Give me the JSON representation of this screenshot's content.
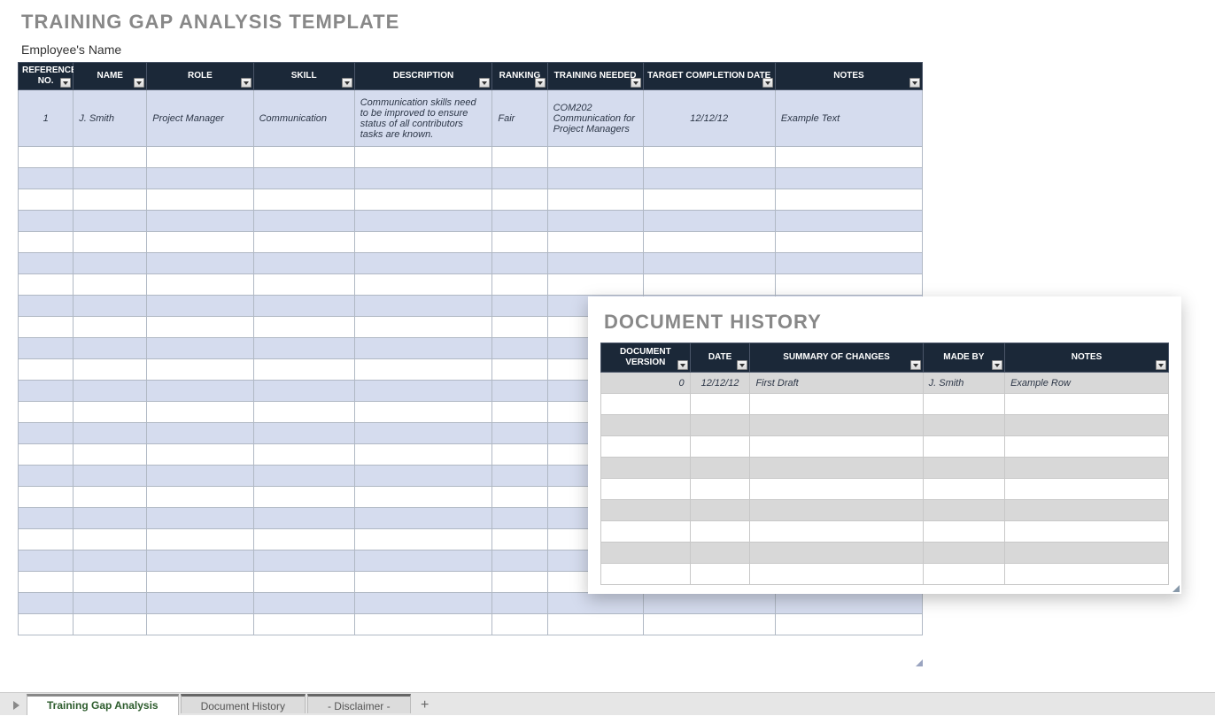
{
  "page": {
    "title": "TRAINING GAP ANALYSIS TEMPLATE",
    "employee_name_label": "Employee's Name"
  },
  "main_table": {
    "headers": {
      "ref": "REFERENCE NO.",
      "name": "NAME",
      "role": "ROLE",
      "skill": "SKILL",
      "desc": "DESCRIPTION",
      "rank": "RANKING",
      "train": "TRAINING NEEDED",
      "date": "TARGET COMPLETION DATE",
      "notes": "NOTES"
    },
    "row1": {
      "ref": "1",
      "name": "J. Smith",
      "role": "Project Manager",
      "skill": "Communication",
      "desc": "Communication skills need to be improved to ensure status of all contributors tasks are known.",
      "rank": "Fair",
      "train": "COM202 Communication for Project Managers",
      "date": "12/12/12",
      "notes": "Example Text"
    },
    "empty_row_count": 23,
    "colors": {
      "header_bg": "#1b2838",
      "header_fg": "#ffffff",
      "row_alt_a": "#d5dcee",
      "row_alt_b": "#ffffff",
      "border": "#b0b8c4"
    }
  },
  "overlay": {
    "title": "DOCUMENT HISTORY",
    "headers": {
      "ver": "DOCUMENT VERSION",
      "date": "DATE",
      "sum": "SUMMARY OF CHANGES",
      "made": "MADE BY",
      "notes": "NOTES"
    },
    "row1": {
      "ver": "0",
      "date": "12/12/12",
      "sum": "First Draft",
      "made": "J. Smith",
      "notes": "Example Row"
    },
    "empty_row_count": 9,
    "colors": {
      "row_alt_a": "#d8d8d8",
      "row_alt_b": "#ffffff"
    }
  },
  "tabs": {
    "items": [
      {
        "label": "Training Gap Analysis",
        "active": true
      },
      {
        "label": "Document History",
        "active": false
      },
      {
        "label": "- Disclaimer -",
        "active": false
      }
    ],
    "add_label": "+"
  }
}
